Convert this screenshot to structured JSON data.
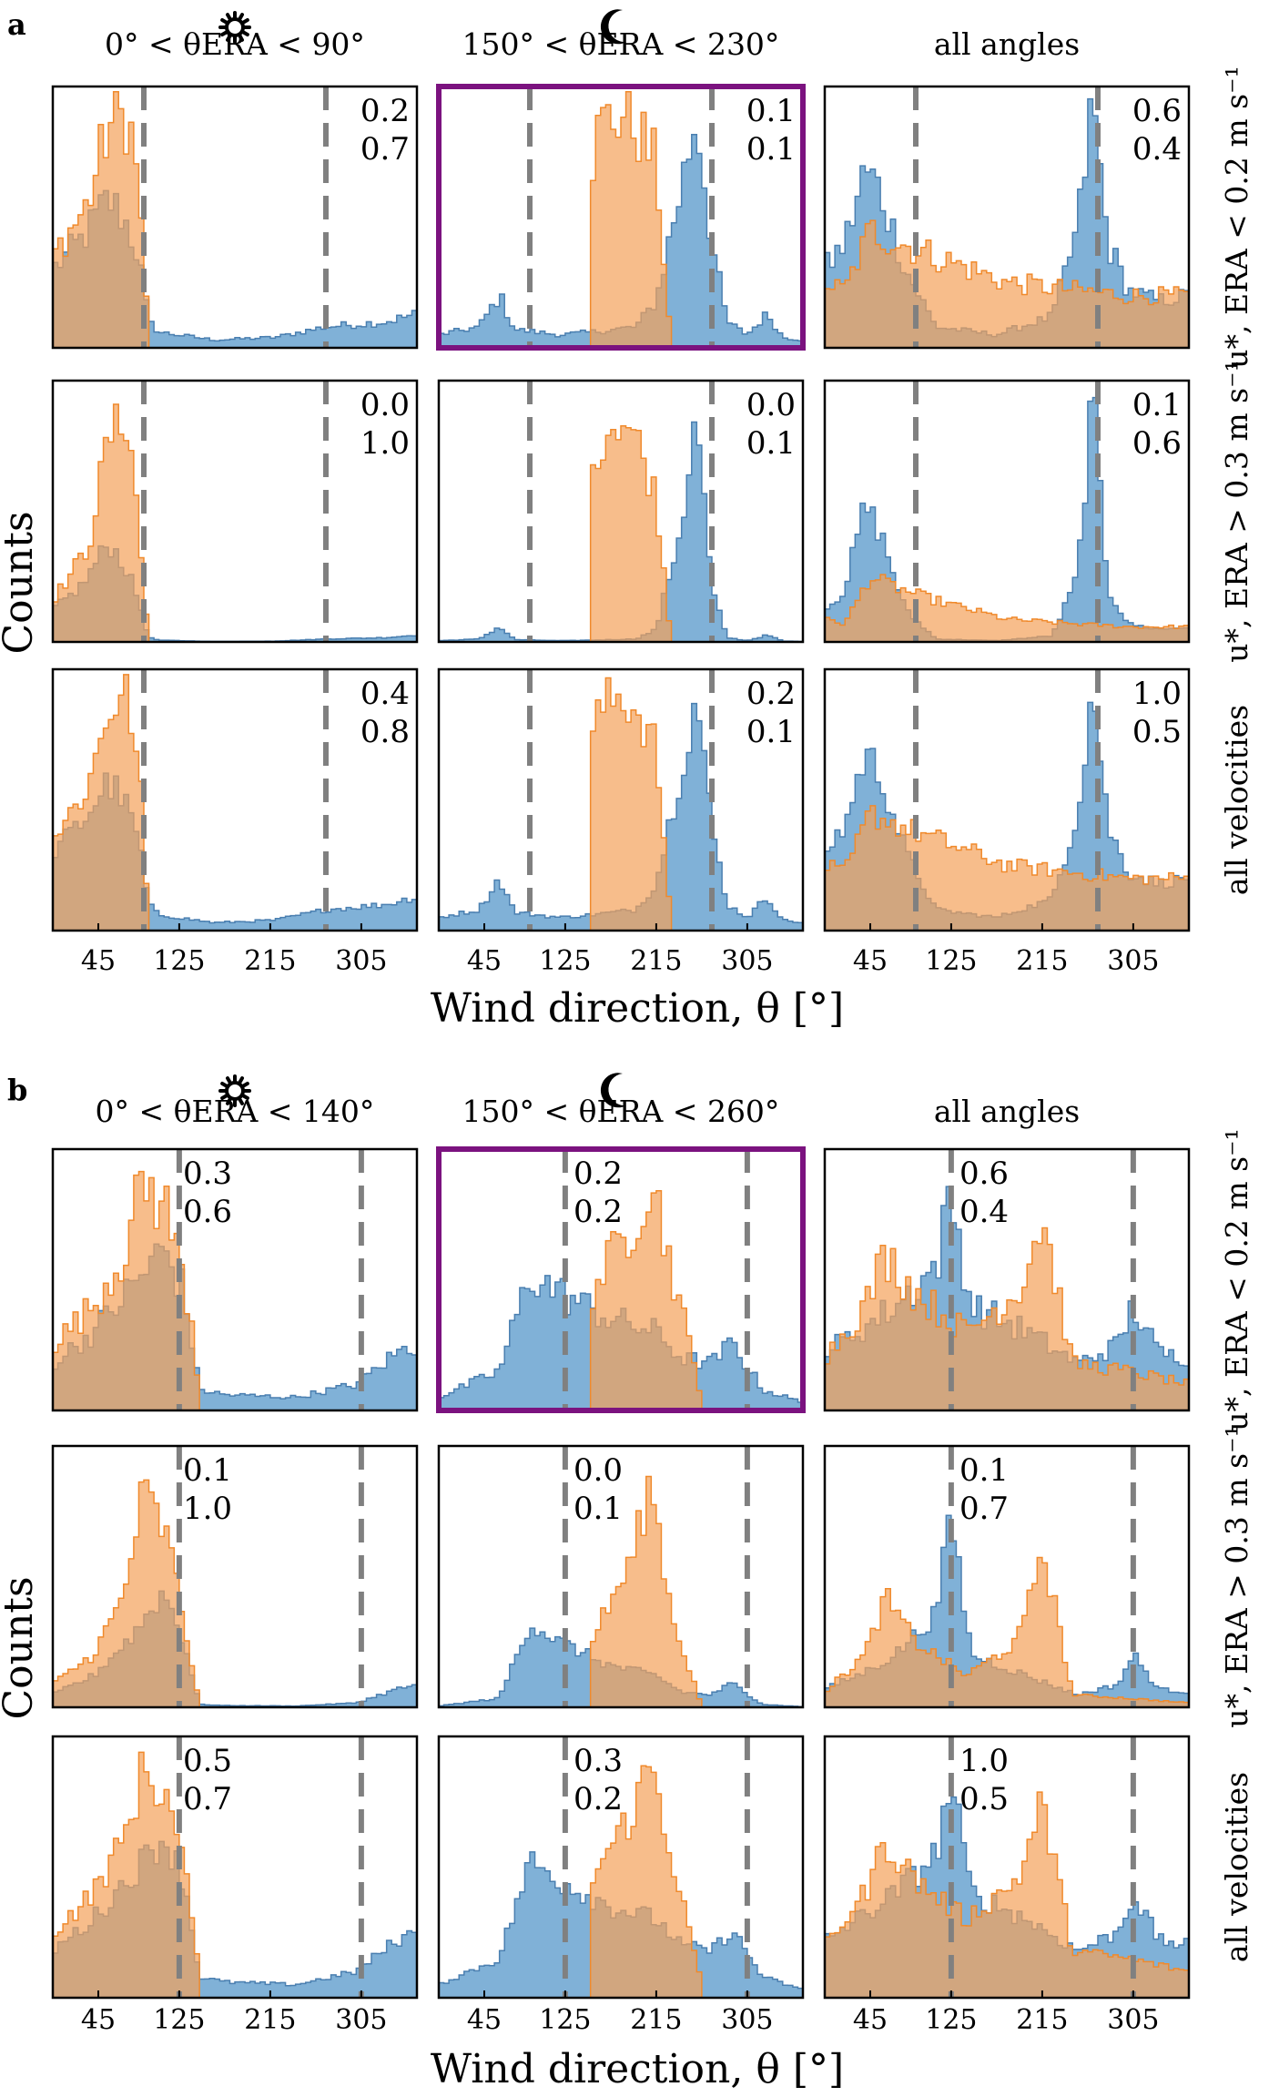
{
  "figure": {
    "ylabel": "Counts",
    "xlabel": "Wind direction, θ [°]",
    "x_ticks": [
      "45",
      "125",
      "215",
      "305"
    ],
    "row_labels": [
      "u*, ERA < 0.2 m s⁻¹",
      "u*, ERA > 0.3 m s⁻¹",
      "all velocities"
    ],
    "colors": {
      "blue": "#6aa3d0",
      "orange": "#f4a15a",
      "overlap": "#bb875d",
      "highlight": "#7b127f",
      "dashed": "#808080"
    }
  },
  "chart_data": [
    {
      "panel": "a",
      "type": "histogram",
      "columns": [
        {
          "title": "0° < θERA < 90°",
          "icon": "sun-icon"
        },
        {
          "title": "150° < θERA < 230°",
          "icon": "moon-icon",
          "highlighted_row": 0
        },
        {
          "title": "all angles",
          "icon": ""
        }
      ],
      "dashed_lines_deg": [
        90,
        270
      ],
      "xlim": [
        0,
        360
      ],
      "annotations": [
        [
          [
            "0.2",
            "0.7"
          ],
          [
            "0.1",
            "0.1"
          ],
          [
            "0.6",
            "0.4"
          ]
        ],
        [
          [
            "0.0",
            "1.0"
          ],
          [
            "0.0",
            "0.1"
          ],
          [
            "0.1",
            "0.6"
          ]
        ],
        [
          [
            "0.4",
            "0.8"
          ],
          [
            "0.2",
            "0.1"
          ],
          [
            "1.0",
            "0.5"
          ]
        ]
      ],
      "series_shapes": {
        "blue": [
          [
            [
              0,
              0.3
            ],
            [
              30,
              0.42
            ],
            [
              55,
              0.57
            ],
            [
              70,
              0.5
            ],
            [
              85,
              0.35
            ],
            [
              95,
              0.1
            ],
            [
              105,
              0.06
            ],
            [
              160,
              0.03
            ],
            [
              220,
              0.04
            ],
            [
              270,
              0.08
            ],
            [
              330,
              0.1
            ],
            [
              360,
              0.13
            ]
          ],
          [
            [
              0,
              0.05
            ],
            [
              40,
              0.08
            ],
            [
              60,
              0.2
            ],
            [
              75,
              0.07
            ],
            [
              120,
              0.05
            ],
            [
              150,
              0.06
            ],
            [
              195,
              0.08
            ],
            [
              215,
              0.18
            ],
            [
              240,
              0.62
            ],
            [
              255,
              0.9
            ],
            [
              270,
              0.4
            ],
            [
              285,
              0.1
            ],
            [
              305,
              0.05
            ],
            [
              325,
              0.13
            ],
            [
              340,
              0.04
            ],
            [
              360,
              0.03
            ]
          ],
          [
            [
              0,
              0.3
            ],
            [
              20,
              0.4
            ],
            [
              40,
              0.68
            ],
            [
              55,
              0.6
            ],
            [
              80,
              0.3
            ],
            [
              110,
              0.08
            ],
            [
              170,
              0.05
            ],
            [
              225,
              0.12
            ],
            [
              250,
              0.45
            ],
            [
              265,
              0.95
            ],
            [
              280,
              0.4
            ],
            [
              300,
              0.22
            ],
            [
              330,
              0.18
            ],
            [
              360,
              0.2
            ]
          ]
        ],
        "orange": [
          [
            [
              0,
              0.35
            ],
            [
              35,
              0.55
            ],
            [
              55,
              0.85
            ],
            [
              75,
              0.9
            ],
            [
              88,
              0.5
            ],
            [
              95,
              0.0
            ]
          ],
          [
            [
              150,
              0.7
            ],
            [
              160,
              0.85
            ],
            [
              180,
              0.9
            ],
            [
              195,
              0.85
            ],
            [
              215,
              0.7
            ],
            [
              230,
              0.0
            ]
          ],
          [
            [
              0,
              0.25
            ],
            [
              20,
              0.22
            ],
            [
              45,
              0.45
            ],
            [
              75,
              0.4
            ],
            [
              110,
              0.35
            ],
            [
              180,
              0.25
            ],
            [
              250,
              0.22
            ],
            [
              300,
              0.2
            ],
            [
              360,
              0.2
            ]
          ]
        ]
      }
    },
    {
      "panel": "b",
      "type": "histogram",
      "columns": [
        {
          "title": "0° < θERA < 140°",
          "icon": "sun-icon"
        },
        {
          "title": "150° < θERA < 260°",
          "icon": "moon-icon",
          "highlighted_row": 0
        },
        {
          "title": "all angles",
          "icon": ""
        }
      ],
      "dashed_lines_deg": [
        125,
        305
      ],
      "xlim": [
        0,
        360
      ],
      "annotations": [
        [
          [
            "0.3",
            "0.6"
          ],
          [
            "0.2",
            "0.2"
          ],
          [
            "0.6",
            "0.4"
          ]
        ],
        [
          [
            "0.1",
            "1.0"
          ],
          [
            "0.0",
            "0.1"
          ],
          [
            "0.1",
            "0.7"
          ]
        ],
        [
          [
            "0.5",
            "0.7"
          ],
          [
            "0.3",
            "0.2"
          ],
          [
            "1.0",
            "0.5"
          ]
        ]
      ],
      "series_shapes": {
        "blue": [
          [
            [
              0,
              0.18
            ],
            [
              40,
              0.3
            ],
            [
              80,
              0.48
            ],
            [
              110,
              0.62
            ],
            [
              130,
              0.45
            ],
            [
              145,
              0.08
            ],
            [
              170,
              0.06
            ],
            [
              240,
              0.05
            ],
            [
              300,
              0.1
            ],
            [
              340,
              0.22
            ],
            [
              360,
              0.25
            ]
          ],
          [
            [
              0,
              0.05
            ],
            [
              60,
              0.15
            ],
            [
              90,
              0.52
            ],
            [
              120,
              0.45
            ],
            [
              170,
              0.35
            ],
            [
              215,
              0.3
            ],
            [
              240,
              0.2
            ],
            [
              270,
              0.18
            ],
            [
              290,
              0.26
            ],
            [
              320,
              0.08
            ],
            [
              360,
              0.03
            ]
          ],
          [
            [
              0,
              0.22
            ],
            [
              40,
              0.32
            ],
            [
              70,
              0.4
            ],
            [
              110,
              0.55
            ],
            [
              125,
              0.82
            ],
            [
              145,
              0.4
            ],
            [
              200,
              0.3
            ],
            [
              250,
              0.18
            ],
            [
              290,
              0.25
            ],
            [
              305,
              0.4
            ],
            [
              330,
              0.22
            ],
            [
              360,
              0.2
            ]
          ]
        ],
        "orange": [
          [
            [
              0,
              0.25
            ],
            [
              40,
              0.4
            ],
            [
              70,
              0.6
            ],
            [
              90,
              0.88
            ],
            [
              115,
              0.75
            ],
            [
              140,
              0.3
            ],
            [
              145,
              0.0
            ]
          ],
          [
            [
              150,
              0.45
            ],
            [
              190,
              0.7
            ],
            [
              210,
              0.9
            ],
            [
              230,
              0.55
            ],
            [
              260,
              0.05
            ]
          ],
          [
            [
              0,
              0.2
            ],
            [
              40,
              0.4
            ],
            [
              60,
              0.6
            ],
            [
              90,
              0.45
            ],
            [
              140,
              0.3
            ],
            [
              190,
              0.45
            ],
            [
              200,
              0.55
            ],
            [
              215,
              0.75
            ],
            [
              245,
              0.18
            ],
            [
              300,
              0.15
            ],
            [
              360,
              0.1
            ]
          ]
        ]
      }
    }
  ]
}
